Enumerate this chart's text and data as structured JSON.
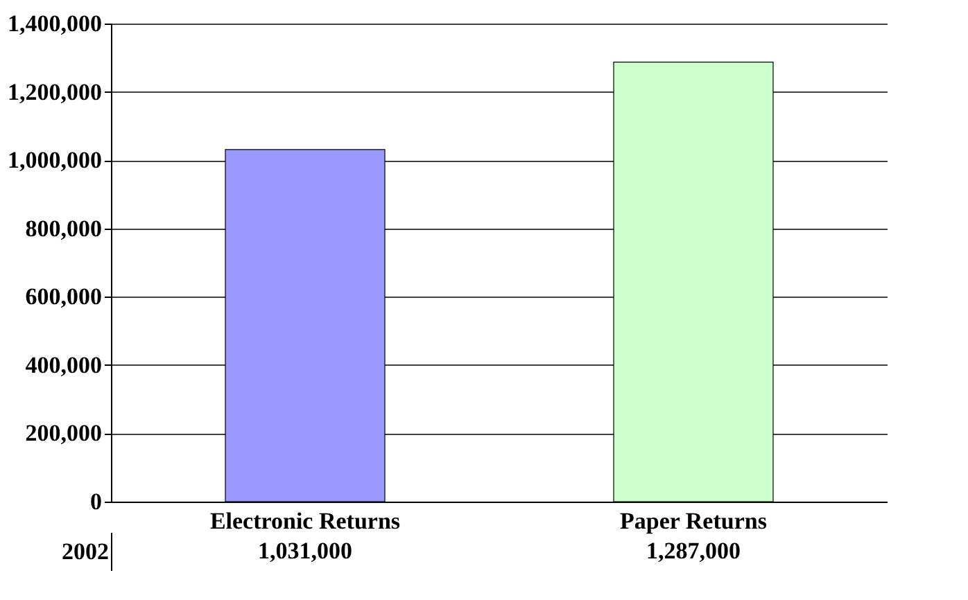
{
  "chart_data": {
    "type": "bar",
    "categories": [
      "Electronic Returns",
      "Paper Returns"
    ],
    "series": [
      {
        "name": "2002",
        "colors": [
          "#9999ff",
          "#ccffcc"
        ],
        "values": [
          1031000,
          1287000
        ],
        "value_labels": [
          "1,031,000",
          "1,287,000"
        ]
      }
    ],
    "ylim": [
      0,
      1400000
    ],
    "yticks": [
      0,
      {
        "value": 200000,
        "label": "200,000"
      },
      {
        "value": 400000,
        "label": "400,000"
      },
      {
        "value": 600000,
        "label": "600,000"
      },
      {
        "value": 800000,
        "label": "800,000"
      },
      {
        "value": 1000000,
        "label": "1,000,000"
      },
      {
        "value": 1200000,
        "label": "1,200,000"
      },
      {
        "value": 1400000,
        "label": "1,400,000"
      }
    ],
    "grid": "y",
    "legend": "bottom left"
  }
}
